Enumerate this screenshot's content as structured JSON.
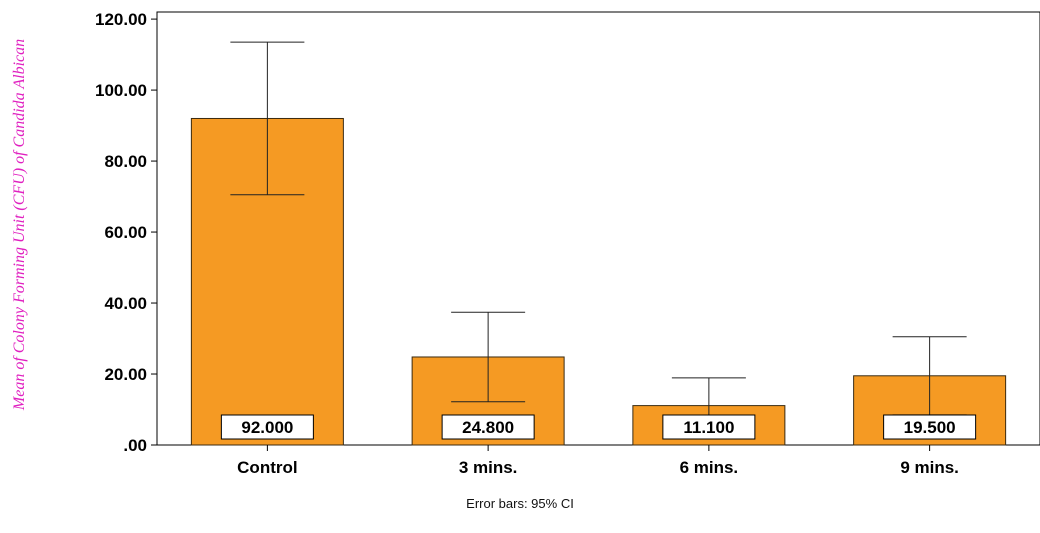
{
  "chart_data": {
    "type": "bar",
    "ylabel": "Mean of Colony Forming Unit (CFU) of Candida Albican",
    "xlabel": "",
    "categories": [
      "Control",
      "3 mins.",
      "6 mins.",
      "9 mins."
    ],
    "values": [
      92.0,
      24.8,
      11.1,
      19.5
    ],
    "data_labels": [
      "92.000",
      "24.800",
      "11.100",
      "19.500"
    ],
    "error_bars": {
      "type": "95% CI",
      "lower": [
        70.5,
        12.2,
        3.6,
        8.5
      ],
      "upper": [
        113.5,
        37.4,
        18.9,
        30.5
      ]
    },
    "ylim": [
      0,
      122
    ],
    "yticks": [
      0,
      20,
      40,
      60,
      80,
      100,
      120
    ],
    "ytick_labels": [
      ".00",
      "20.00",
      "40.00",
      "60.00",
      "80.00",
      "100.00",
      "120.00"
    ],
    "grid": false,
    "colors": {
      "bar": "#f59a23",
      "bar_edge": "#3a2a10",
      "ylabel": "#e020c0"
    },
    "footnote": "Error bars: 95% CI"
  }
}
